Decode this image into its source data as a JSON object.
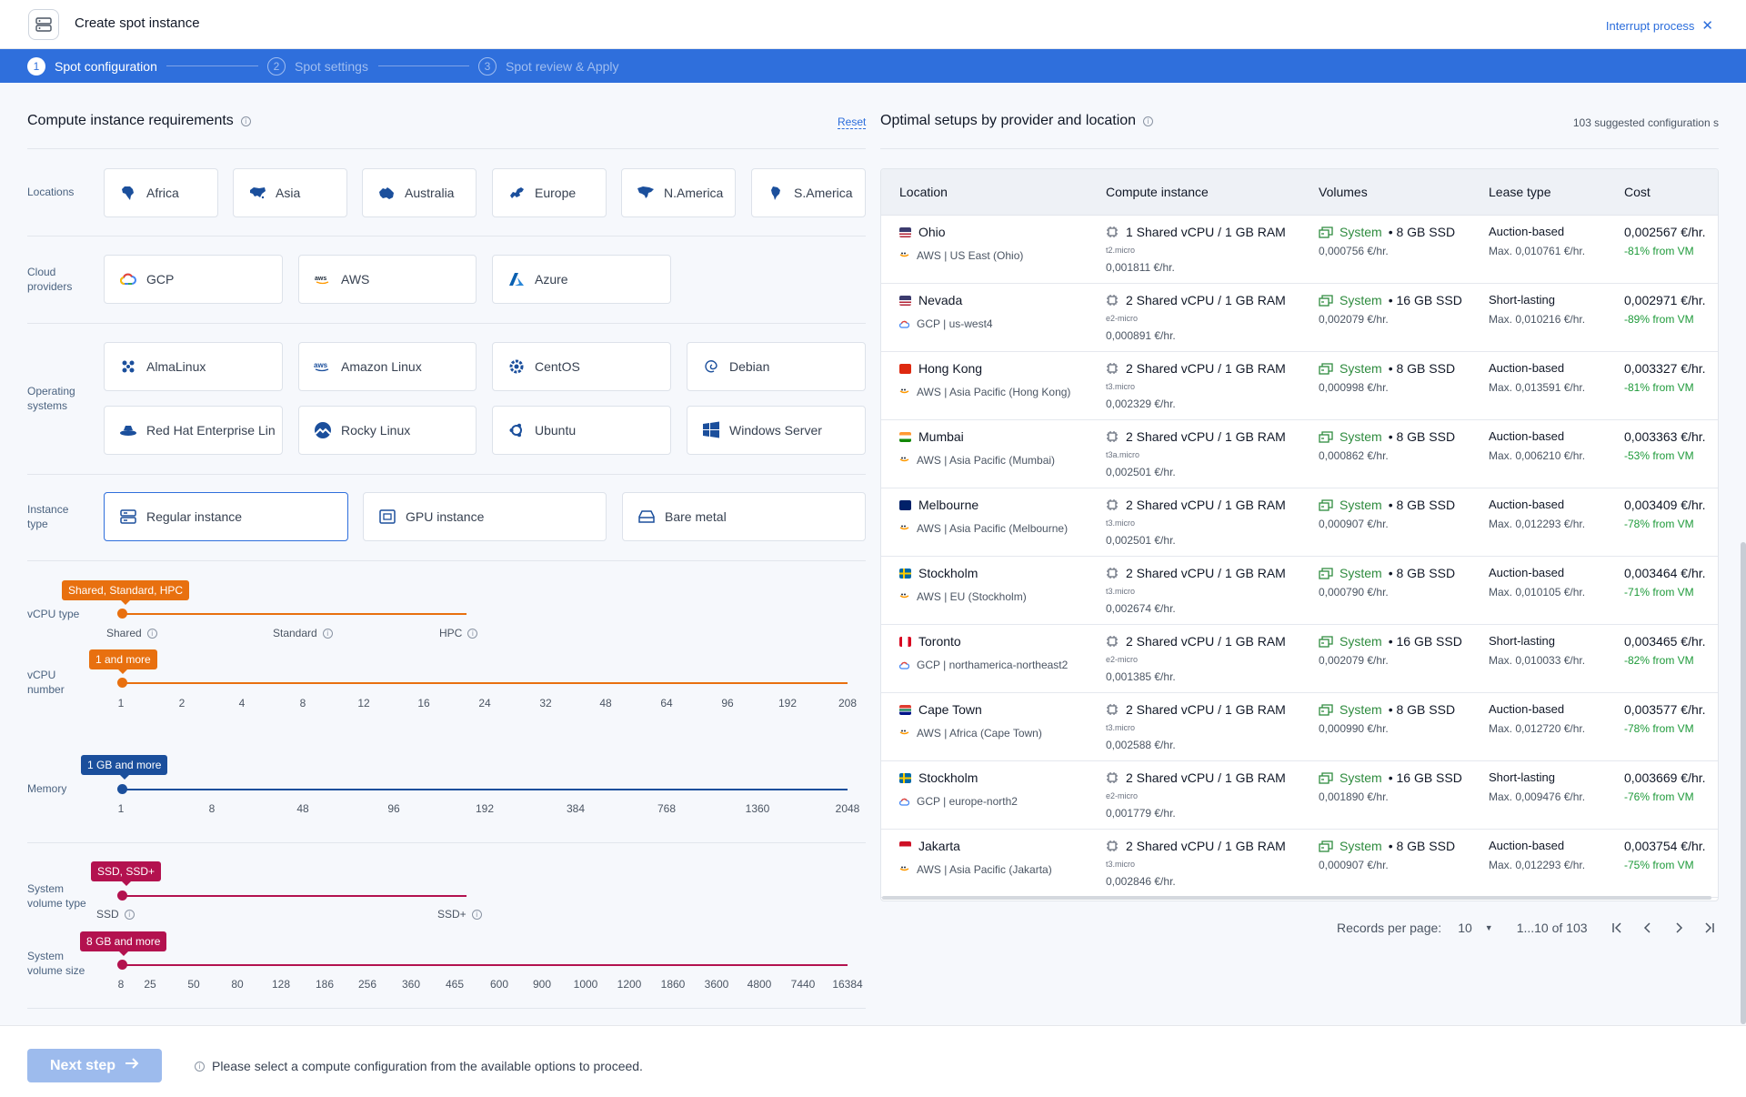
{
  "window": {
    "title": "Create spot instance",
    "interrupt_label": "Interrupt process"
  },
  "stepper": [
    {
      "num": "1",
      "label": "Spot configuration",
      "state": "active"
    },
    {
      "num": "2",
      "label": "Spot settings",
      "state": "inactive"
    },
    {
      "num": "3",
      "label": "Spot review & Apply",
      "state": "inactive"
    }
  ],
  "requirements": {
    "title": "Compute instance requirements",
    "reset_label": "Reset",
    "locations_label": "Locations",
    "locations": [
      "Africa",
      "Asia",
      "Australia",
      "Europe",
      "N.America",
      "S.America"
    ],
    "cloud_label": "Cloud providers",
    "clouds": [
      "GCP",
      "AWS",
      "Azure"
    ],
    "os_label": "Operating systems",
    "os": [
      "AlmaLinux",
      "Amazon Linux",
      "CentOS",
      "Debian",
      "Red Hat Enterprise Lin",
      "Rocky Linux",
      "Ubuntu",
      "Windows Server"
    ],
    "instance_label": "Instance type",
    "instance_types": [
      "Regular instance",
      "GPU instance",
      "Bare metal"
    ],
    "instance_selected": "Regular instance"
  },
  "sliders": {
    "vcpu_type": {
      "label": "vCPU type",
      "badge": "Shared, Standard, HPC",
      "ticks": [
        "Shared",
        "Standard",
        "HPC"
      ]
    },
    "vcpu_number": {
      "label": "vCPU number",
      "badge": "1 and more",
      "ticks": [
        "1",
        "2",
        "4",
        "8",
        "12",
        "16",
        "24",
        "32",
        "48",
        "64",
        "96",
        "192",
        "208"
      ]
    },
    "memory": {
      "label": "Memory",
      "badge": "1 GB and more",
      "ticks": [
        "1",
        "8",
        "48",
        "96",
        "192",
        "384",
        "768",
        "1360",
        "2048"
      ]
    },
    "volume_type": {
      "label": "System volume type",
      "badge": "SSD, SSD+",
      "ticks": [
        "SSD",
        "SSD+"
      ]
    },
    "volume_size": {
      "label": "System volume size",
      "badge": "8 GB and more",
      "ticks": [
        "8",
        "25",
        "50",
        "80",
        "128",
        "186",
        "256",
        "360",
        "465",
        "600",
        "900",
        "1000",
        "1200",
        "1860",
        "3600",
        "4800",
        "7440",
        "16384"
      ]
    }
  },
  "colors": {
    "accent": "#2f6fdc",
    "orange": "#e8700f",
    "navy": "#1b4f9c",
    "crimson": "#b3124f",
    "green": "#2e8b3e"
  },
  "optimal": {
    "title": "Optimal setups by provider and location",
    "suggested": "103 suggested configuration s",
    "columns": [
      "Location",
      "Compute instance",
      "Volumes",
      "Lease type",
      "Cost"
    ],
    "rows": [
      {
        "location": "Ohio",
        "flag": "us",
        "provider_icon": "aws-icon",
        "provider": "AWS | US East (Ohio)",
        "compute": "1 Shared vCPU / 1 GB RAM",
        "sku": "t2.micro",
        "compute_price": "0,001811 €/hr.",
        "volume_sys": "System",
        "volume_size": "• 8 GB SSD",
        "volume_price": "0,000756 €/hr.",
        "lease": "Auction-based",
        "lease_max": "Max. 0,010761 €/hr.",
        "cost": "0,002567 €/hr.",
        "discount": "-81% from VM"
      },
      {
        "location": "Nevada",
        "flag": "us",
        "provider_icon": "gcp-icon",
        "provider": "GCP | us-west4",
        "compute": "2 Shared vCPU / 1 GB RAM",
        "sku": "e2-micro",
        "compute_price": "0,000891 €/hr.",
        "volume_sys": "System",
        "volume_size": "• 16 GB SSD",
        "volume_price": "0,002079 €/hr.",
        "lease": "Short-lasting",
        "lease_max": "Max. 0,010216 €/hr.",
        "cost": "0,002971 €/hr.",
        "discount": "-89% from VM"
      },
      {
        "location": "Hong Kong",
        "flag": "hk",
        "provider_icon": "aws-icon",
        "provider": "AWS | Asia Pacific (Hong Kong)",
        "compute": "2 Shared vCPU / 1 GB RAM",
        "sku": "t3.micro",
        "compute_price": "0,002329 €/hr.",
        "volume_sys": "System",
        "volume_size": "• 8 GB SSD",
        "volume_price": "0,000998 €/hr.",
        "lease": "Auction-based",
        "lease_max": "Max. 0,013591 €/hr.",
        "cost": "0,003327 €/hr.",
        "discount": "-81% from VM"
      },
      {
        "location": "Mumbai",
        "flag": "in",
        "provider_icon": "aws-icon",
        "provider": "AWS | Asia Pacific (Mumbai)",
        "compute": "2 Shared vCPU / 1 GB RAM",
        "sku": "t3a.micro",
        "compute_price": "0,002501 €/hr.",
        "volume_sys": "System",
        "volume_size": "• 8 GB SSD",
        "volume_price": "0,000862 €/hr.",
        "lease": "Auction-based",
        "lease_max": "Max. 0,006210 €/hr.",
        "cost": "0,003363 €/hr.",
        "discount": "-53% from VM"
      },
      {
        "location": "Melbourne",
        "flag": "au",
        "provider_icon": "aws-icon",
        "provider": "AWS | Asia Pacific (Melbourne)",
        "compute": "2 Shared vCPU / 1 GB RAM",
        "sku": "t3.micro",
        "compute_price": "0,002501 €/hr.",
        "volume_sys": "System",
        "volume_size": "• 8 GB SSD",
        "volume_price": "0,000907 €/hr.",
        "lease": "Auction-based",
        "lease_max": "Max. 0,012293 €/hr.",
        "cost": "0,003409 €/hr.",
        "discount": "-78% from VM"
      },
      {
        "location": "Stockholm",
        "flag": "se",
        "provider_icon": "aws-icon",
        "provider": "AWS | EU (Stockholm)",
        "compute": "2 Shared vCPU / 1 GB RAM",
        "sku": "t3.micro",
        "compute_price": "0,002674 €/hr.",
        "volume_sys": "System",
        "volume_size": "• 8 GB SSD",
        "volume_price": "0,000790 €/hr.",
        "lease": "Auction-based",
        "lease_max": "Max. 0,010105 €/hr.",
        "cost": "0,003464 €/hr.",
        "discount": "-71% from VM"
      },
      {
        "location": "Toronto",
        "flag": "ca",
        "provider_icon": "gcp-icon",
        "provider": "GCP | northamerica-northeast2",
        "compute": "2 Shared vCPU / 1 GB RAM",
        "sku": "e2-micro",
        "compute_price": "0,001385 €/hr.",
        "volume_sys": "System",
        "volume_size": "• 16 GB SSD",
        "volume_price": "0,002079 €/hr.",
        "lease": "Short-lasting",
        "lease_max": "Max. 0,010033 €/hr.",
        "cost": "0,003465 €/hr.",
        "discount": "-82% from VM"
      },
      {
        "location": "Cape Town",
        "flag": "za",
        "provider_icon": "aws-icon",
        "provider": "AWS | Africa (Cape Town)",
        "compute": "2 Shared vCPU / 1 GB RAM",
        "sku": "t3.micro",
        "compute_price": "0,002588 €/hr.",
        "volume_sys": "System",
        "volume_size": "• 8 GB SSD",
        "volume_price": "0,000990 €/hr.",
        "lease": "Auction-based",
        "lease_max": "Max. 0,012720 €/hr.",
        "cost": "0,003577 €/hr.",
        "discount": "-78% from VM"
      },
      {
        "location": "Stockholm",
        "flag": "se",
        "provider_icon": "gcp-icon",
        "provider": "GCP | europe-north2",
        "compute": "2 Shared vCPU / 1 GB RAM",
        "sku": "e2-micro",
        "compute_price": "0,001779 €/hr.",
        "volume_sys": "System",
        "volume_size": "• 16 GB SSD",
        "volume_price": "0,001890 €/hr.",
        "lease": "Short-lasting",
        "lease_max": "Max. 0,009476 €/hr.",
        "cost": "0,003669 €/hr.",
        "discount": "-76% from VM"
      },
      {
        "location": "Jakarta",
        "flag": "id",
        "provider_icon": "aws-icon",
        "provider": "AWS | Asia Pacific (Jakarta)",
        "compute": "2 Shared vCPU / 1 GB RAM",
        "sku": "t3.micro",
        "compute_price": "0,002846 €/hr.",
        "volume_sys": "System",
        "volume_size": "• 8 GB SSD",
        "volume_price": "0,000907 €/hr.",
        "lease": "Auction-based",
        "lease_max": "Max. 0,012293 €/hr.",
        "cost": "0,003754 €/hr.",
        "discount": "-75% from VM"
      }
    ]
  },
  "pagination": {
    "records_label": "Records per page:",
    "per_page": "10",
    "range": "1...10 of 103"
  },
  "footer": {
    "next_label": "Next step",
    "hint": "Please select a compute configuration from the available options to proceed."
  }
}
